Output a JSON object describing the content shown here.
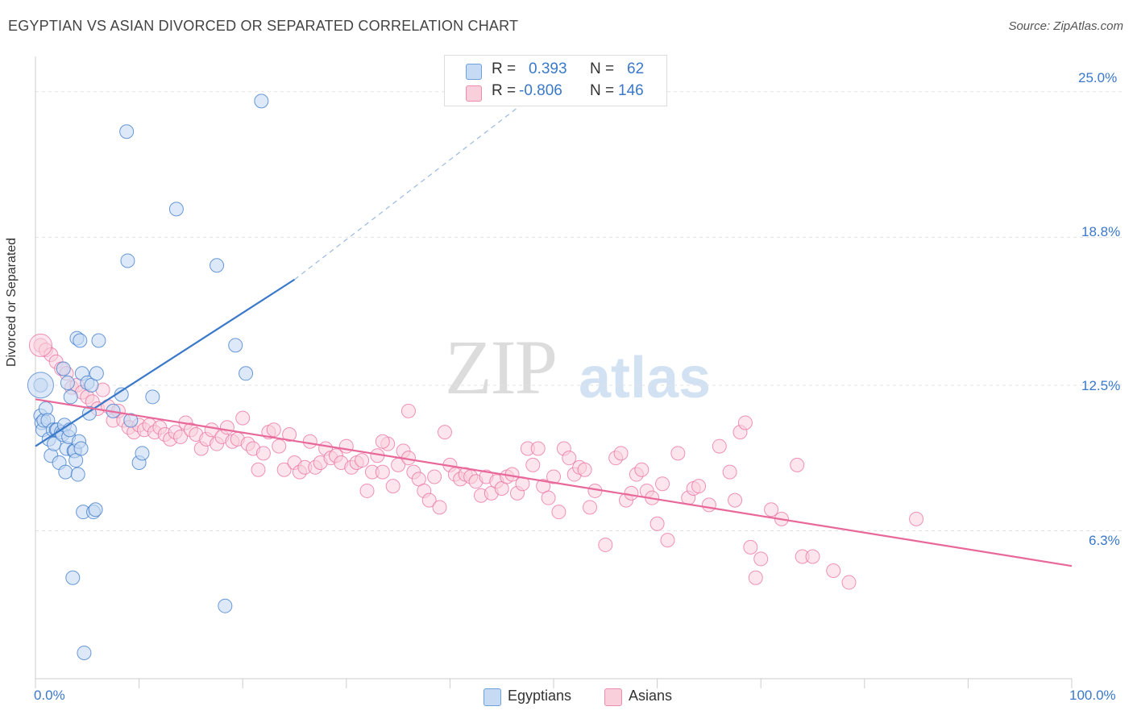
{
  "title": "EGYPTIAN VS ASIAN DIVORCED OR SEPARATED CORRELATION CHART",
  "source": "Source: ZipAtlas.com",
  "watermark": {
    "zip": "ZIP",
    "atlas": "atlas"
  },
  "colors": {
    "blue": "#3a78c9",
    "blue_fill": "#c7daf4",
    "pink": "#e8689a",
    "pink_fill": "#f9cfdc"
  },
  "stats": {
    "r_label": "R =",
    "n_label": "N =",
    "egyptians": {
      "r": "0.393",
      "n": "62"
    },
    "asians": {
      "r": "-0.806",
      "n": "146"
    }
  },
  "legend": {
    "egyptians": "Egyptians",
    "asians": "Asians"
  },
  "chart_data": {
    "type": "scatter",
    "title": "EGYPTIAN VS ASIAN DIVORCED OR SEPARATED CORRELATION CHART",
    "xlabel": "",
    "ylabel": "Divorced or Separated",
    "xlim": [
      0,
      100
    ],
    "ylim": [
      0,
      26.5
    ],
    "x_tick_labels": [
      "0.0%",
      "100.0%"
    ],
    "y_ticks": [
      6.3,
      12.5,
      18.8,
      25.0
    ],
    "y_tick_labels": [
      "6.3%",
      "12.5%",
      "18.8%",
      "25.0%"
    ],
    "grid": "horizontal dashed",
    "legend_position": "bottom-center",
    "series": [
      {
        "name": "Egyptians",
        "trend": {
          "x": [
            0,
            25
          ],
          "y": [
            9.9,
            17.0
          ],
          "dashed_to": [
            50,
            25.5
          ]
        },
        "points": [
          [
            0.5,
            12.5
          ],
          [
            0.5,
            11.2
          ],
          [
            0.6,
            10.9
          ],
          [
            0.7,
            10.6
          ],
          [
            0.8,
            11.0
          ],
          [
            1.0,
            11.5
          ],
          [
            1.2,
            11.0
          ],
          [
            1.3,
            10.2
          ],
          [
            1.5,
            9.5
          ],
          [
            1.7,
            10.6
          ],
          [
            1.8,
            10.0
          ],
          [
            2.0,
            10.6
          ],
          [
            2.1,
            10.6
          ],
          [
            2.3,
            9.2
          ],
          [
            2.5,
            10.5
          ],
          [
            2.6,
            10.4
          ],
          [
            2.7,
            13.2
          ],
          [
            2.8,
            10.8
          ],
          [
            2.9,
            8.8
          ],
          [
            3.0,
            9.8
          ],
          [
            3.1,
            12.6
          ],
          [
            3.2,
            10.3
          ],
          [
            3.3,
            10.6
          ],
          [
            3.4,
            12.0
          ],
          [
            3.6,
            4.3
          ],
          [
            3.7,
            9.7
          ],
          [
            3.8,
            9.7
          ],
          [
            3.9,
            9.3
          ],
          [
            4.0,
            14.5
          ],
          [
            4.1,
            8.7
          ],
          [
            4.2,
            10.1
          ],
          [
            4.3,
            14.4
          ],
          [
            4.4,
            9.8
          ],
          [
            4.5,
            13.0
          ],
          [
            4.6,
            7.1
          ],
          [
            4.7,
            1.1
          ],
          [
            5.0,
            12.6
          ],
          [
            5.2,
            11.3
          ],
          [
            5.4,
            12.5
          ],
          [
            5.6,
            7.1
          ],
          [
            5.8,
            7.2
          ],
          [
            5.9,
            13.0
          ],
          [
            6.1,
            14.4
          ],
          [
            7.5,
            11.4
          ],
          [
            8.3,
            12.1
          ],
          [
            8.8,
            23.3
          ],
          [
            8.9,
            17.8
          ],
          [
            10.0,
            9.2
          ],
          [
            10.3,
            9.6
          ],
          [
            13.6,
            20.0
          ],
          [
            17.5,
            17.6
          ],
          [
            18.3,
            3.1
          ],
          [
            19.3,
            14.2
          ],
          [
            20.3,
            13.0
          ],
          [
            21.8,
            24.6
          ],
          [
            9.2,
            11.0
          ],
          [
            11.3,
            12.0
          ]
        ]
      },
      {
        "name": "Asians",
        "trend": {
          "x": [
            0,
            100
          ],
          "y": [
            11.9,
            4.8
          ]
        },
        "points": [
          [
            0.5,
            14.2
          ],
          [
            1.0,
            14.0
          ],
          [
            1.5,
            13.8
          ],
          [
            2.0,
            13.5
          ],
          [
            2.5,
            13.2
          ],
          [
            3.0,
            13.0
          ],
          [
            3.5,
            12.4
          ],
          [
            4.0,
            12.5
          ],
          [
            4.5,
            12.2
          ],
          [
            5.0,
            12.0
          ],
          [
            5.5,
            11.8
          ],
          [
            6.0,
            11.5
          ],
          [
            6.5,
            12.3
          ],
          [
            7.0,
            11.6
          ],
          [
            7.5,
            11.0
          ],
          [
            8.0,
            11.4
          ],
          [
            8.5,
            11.0
          ],
          [
            9.0,
            10.7
          ],
          [
            9.5,
            10.5
          ],
          [
            10.0,
            10.8
          ],
          [
            10.5,
            10.6
          ],
          [
            11.0,
            10.8
          ],
          [
            11.5,
            10.5
          ],
          [
            12.0,
            10.7
          ],
          [
            12.5,
            10.4
          ],
          [
            13.0,
            10.2
          ],
          [
            13.5,
            10.5
          ],
          [
            14.0,
            10.3
          ],
          [
            14.5,
            10.9
          ],
          [
            15.0,
            10.6
          ],
          [
            15.5,
            10.4
          ],
          [
            16.0,
            9.8
          ],
          [
            16.5,
            10.2
          ],
          [
            17.0,
            10.6
          ],
          [
            17.5,
            10.0
          ],
          [
            18.0,
            10.3
          ],
          [
            18.5,
            10.7
          ],
          [
            19.0,
            10.1
          ],
          [
            19.5,
            10.2
          ],
          [
            20.0,
            11.1
          ],
          [
            20.5,
            10.0
          ],
          [
            21.0,
            9.8
          ],
          [
            21.5,
            8.9
          ],
          [
            22.0,
            9.6
          ],
          [
            22.5,
            10.5
          ],
          [
            23.0,
            10.6
          ],
          [
            23.5,
            9.9
          ],
          [
            24.0,
            8.9
          ],
          [
            24.5,
            10.4
          ],
          [
            25.0,
            9.2
          ],
          [
            25.5,
            8.8
          ],
          [
            26.0,
            9.0
          ],
          [
            26.5,
            10.1
          ],
          [
            27.0,
            9.0
          ],
          [
            27.5,
            9.2
          ],
          [
            28.0,
            9.8
          ],
          [
            28.5,
            9.4
          ],
          [
            29.0,
            9.5
          ],
          [
            29.5,
            9.2
          ],
          [
            30.0,
            9.9
          ],
          [
            30.5,
            9.0
          ],
          [
            31.0,
            9.2
          ],
          [
            31.5,
            9.3
          ],
          [
            32.0,
            8.0
          ],
          [
            32.5,
            8.8
          ],
          [
            33.0,
            9.5
          ],
          [
            33.5,
            8.8
          ],
          [
            34.0,
            10.0
          ],
          [
            34.5,
            8.2
          ],
          [
            35.0,
            9.1
          ],
          [
            35.5,
            9.7
          ],
          [
            36.0,
            9.4
          ],
          [
            36.5,
            8.8
          ],
          [
            37.0,
            8.5
          ],
          [
            37.5,
            8.0
          ],
          [
            38.0,
            7.6
          ],
          [
            38.5,
            8.6
          ],
          [
            39.0,
            7.3
          ],
          [
            39.5,
            10.5
          ],
          [
            40.0,
            9.1
          ],
          [
            40.5,
            8.7
          ],
          [
            41.0,
            8.5
          ],
          [
            41.5,
            8.7
          ],
          [
            42.0,
            8.6
          ],
          [
            42.5,
            8.4
          ],
          [
            43.0,
            7.8
          ],
          [
            43.5,
            8.6
          ],
          [
            44.0,
            7.9
          ],
          [
            44.5,
            8.4
          ],
          [
            45.0,
            8.1
          ],
          [
            45.5,
            8.6
          ],
          [
            46.0,
            8.7
          ],
          [
            46.5,
            7.9
          ],
          [
            47.0,
            8.3
          ],
          [
            47.5,
            9.8
          ],
          [
            48.0,
            9.1
          ],
          [
            48.5,
            9.8
          ],
          [
            49.0,
            8.2
          ],
          [
            49.5,
            7.7
          ],
          [
            50.0,
            8.6
          ],
          [
            50.5,
            7.1
          ],
          [
            51.0,
            9.8
          ],
          [
            51.5,
            9.4
          ],
          [
            52.0,
            8.7
          ],
          [
            52.5,
            9.0
          ],
          [
            53.0,
            8.9
          ],
          [
            53.5,
            7.3
          ],
          [
            54.0,
            8.0
          ],
          [
            55.0,
            5.7
          ],
          [
            56.0,
            9.4
          ],
          [
            56.5,
            9.6
          ],
          [
            57.0,
            7.6
          ],
          [
            57.5,
            7.9
          ],
          [
            58.0,
            8.7
          ],
          [
            58.5,
            8.9
          ],
          [
            59.0,
            8.0
          ],
          [
            59.5,
            7.7
          ],
          [
            60.0,
            6.6
          ],
          [
            60.5,
            8.3
          ],
          [
            61.0,
            5.9
          ],
          [
            62.0,
            9.6
          ],
          [
            63.0,
            7.7
          ],
          [
            63.5,
            8.1
          ],
          [
            64.0,
            8.2
          ],
          [
            65.0,
            7.4
          ],
          [
            66.0,
            9.9
          ],
          [
            67.0,
            8.8
          ],
          [
            67.5,
            7.6
          ],
          [
            68.0,
            10.5
          ],
          [
            68.5,
            10.9
          ],
          [
            69.0,
            5.6
          ],
          [
            69.5,
            4.3
          ],
          [
            70.0,
            5.1
          ],
          [
            71.0,
            7.2
          ],
          [
            72.0,
            6.8
          ],
          [
            73.5,
            9.1
          ],
          [
            74.0,
            5.2
          ],
          [
            75.0,
            5.2
          ],
          [
            77.0,
            4.6
          ],
          [
            78.5,
            4.1
          ],
          [
            85.0,
            6.8
          ],
          [
            33.5,
            10.1
          ],
          [
            36.0,
            11.4
          ]
        ]
      }
    ]
  }
}
